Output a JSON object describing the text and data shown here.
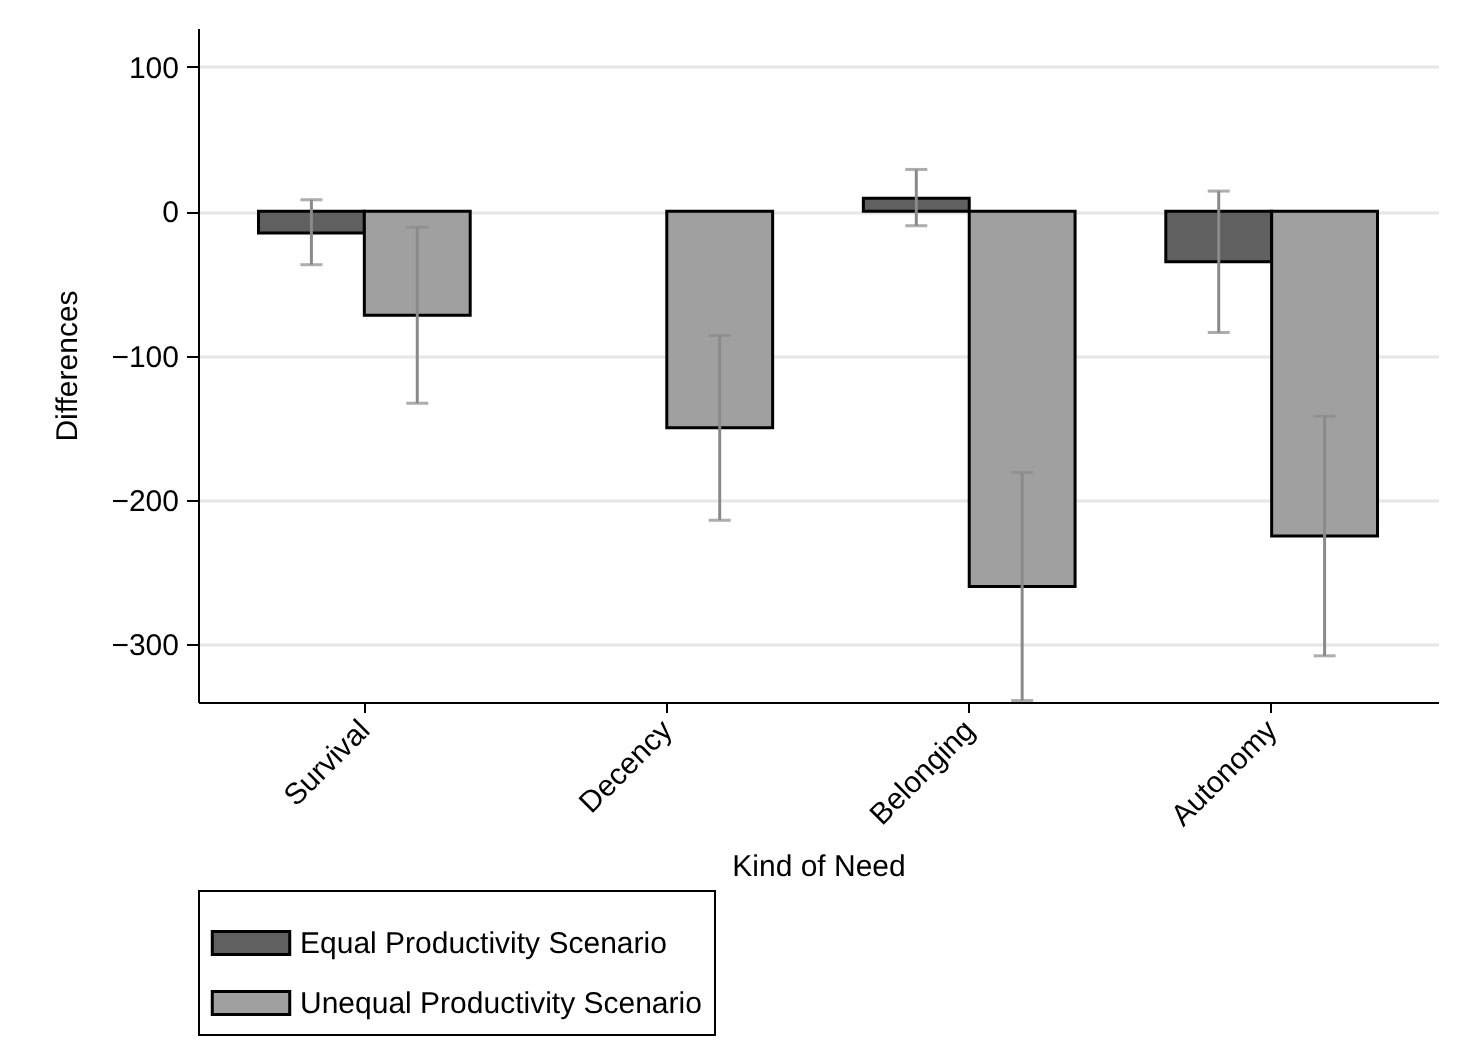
{
  "chart_data": {
    "type": "bar",
    "xlabel": "Kind of Need",
    "ylabel": "Differences",
    "categories": [
      "Survival",
      "Decency",
      "Belonging",
      "Autonomy"
    ],
    "series": [
      {
        "name": "Equal Productivity Scenario",
        "color": "#606060",
        "values": [
          -15,
          null,
          9,
          -35
        ],
        "errors": [
          [
            -37,
            8
          ],
          null,
          [
            -10,
            29
          ],
          [
            -84,
            14
          ]
        ]
      },
      {
        "name": "Unequal Productivity Scenario",
        "color": "#a0a0a0",
        "values": [
          -72,
          -150,
          -260,
          -225
        ],
        "errors": [
          [
            -133,
            -11
          ],
          [
            -214,
            -86
          ],
          [
            -339,
            -181
          ],
          [
            -308,
            -142
          ]
        ]
      }
    ],
    "ylim": [
      -340,
      127
    ],
    "yticks": [
      100,
      0,
      {
        "value": -100,
        "label": "−100"
      },
      {
        "value": -200,
        "label": "−200"
      },
      {
        "value": -300,
        "label": "−300"
      }
    ],
    "grid": "y",
    "legend": "bottom"
  }
}
